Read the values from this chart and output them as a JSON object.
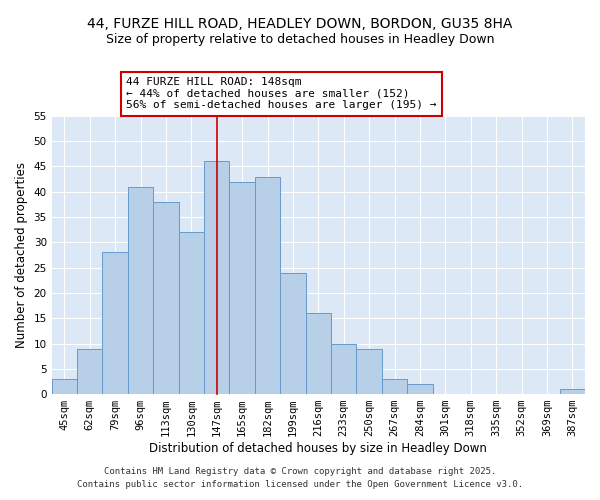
{
  "title_line1": "44, FURZE HILL ROAD, HEADLEY DOWN, BORDON, GU35 8HA",
  "title_line2": "Size of property relative to detached houses in Headley Down",
  "xlabel": "Distribution of detached houses by size in Headley Down",
  "ylabel": "Number of detached properties",
  "bin_labels": [
    "45sqm",
    "62sqm",
    "79sqm",
    "96sqm",
    "113sqm",
    "130sqm",
    "147sqm",
    "165sqm",
    "182sqm",
    "199sqm",
    "216sqm",
    "233sqm",
    "250sqm",
    "267sqm",
    "284sqm",
    "301sqm",
    "318sqm",
    "335sqm",
    "352sqm",
    "369sqm",
    "387sqm"
  ],
  "bar_values": [
    3,
    9,
    28,
    41,
    38,
    32,
    46,
    42,
    43,
    24,
    16,
    10,
    9,
    3,
    2,
    0,
    0,
    0,
    0,
    0,
    1
  ],
  "bar_color": "#b8cfe8",
  "bar_edge_color": "#6699cc",
  "vline_x_index": 6,
  "vline_color": "#cc0000",
  "annotation_title": "44 FURZE HILL ROAD: 148sqm",
  "annotation_line1": "← 44% of detached houses are smaller (152)",
  "annotation_line2": "56% of semi-detached houses are larger (195) →",
  "annotation_box_edge_color": "#cc0000",
  "annotation_box_face_color": "white",
  "ylim": [
    0,
    55
  ],
  "yticks": [
    0,
    5,
    10,
    15,
    20,
    25,
    30,
    35,
    40,
    45,
    50,
    55
  ],
  "background_color": "#dce8f5",
  "footer_line1": "Contains HM Land Registry data © Crown copyright and database right 2025.",
  "footer_line2": "Contains public sector information licensed under the Open Government Licence v3.0.",
  "title_fontsize": 10,
  "subtitle_fontsize": 9,
  "axis_label_fontsize": 8.5,
  "tick_fontsize": 7.5,
  "annotation_fontsize": 8,
  "footer_fontsize": 6.5
}
